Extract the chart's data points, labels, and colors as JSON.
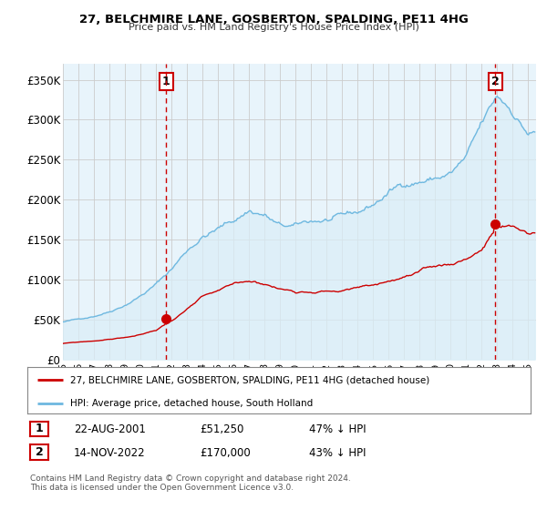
{
  "title": "27, BELCHMIRE LANE, GOSBERTON, SPALDING, PE11 4HG",
  "subtitle": "Price paid vs. HM Land Registry's House Price Index (HPI)",
  "yticks_labels": [
    "£0",
    "£50K",
    "£100K",
    "£150K",
    "£200K",
    "£250K",
    "£300K",
    "£350K"
  ],
  "yticks_values": [
    0,
    50000,
    100000,
    150000,
    200000,
    250000,
    300000,
    350000
  ],
  "ylim": [
    0,
    370000
  ],
  "hpi_color": "#6eb8e0",
  "hpi_fill_color": "#daeef7",
  "price_color": "#cc0000",
  "vline_color": "#cc0000",
  "vline_style": "--",
  "marker1_year": 2001.65,
  "marker1_price": 51250,
  "marker1_label": "1",
  "marker2_year": 2022.87,
  "marker2_price": 170000,
  "marker2_label": "2",
  "legend_line1": "27, BELCHMIRE LANE, GOSBERTON, SPALDING, PE11 4HG (detached house)",
  "legend_line2": "HPI: Average price, detached house, South Holland",
  "table_row1": [
    "1",
    "22-AUG-2001",
    "£51,250",
    "47% ↓ HPI"
  ],
  "table_row2": [
    "2",
    "14-NOV-2022",
    "£170,000",
    "43% ↓ HPI"
  ],
  "footer": "Contains HM Land Registry data © Crown copyright and database right 2024.\nThis data is licensed under the Open Government Licence v3.0.",
  "background_color": "#ffffff",
  "chart_bg_color": "#e8f4fb",
  "grid_color": "#cccccc",
  "xlim": [
    1995.0,
    2025.5
  ],
  "xtick_years": [
    1995,
    1996,
    1997,
    1998,
    1999,
    2000,
    2001,
    2002,
    2003,
    2004,
    2005,
    2006,
    2007,
    2008,
    2009,
    2010,
    2011,
    2012,
    2013,
    2014,
    2015,
    2016,
    2017,
    2018,
    2019,
    2020,
    2021,
    2022,
    2023,
    2024,
    2025
  ]
}
